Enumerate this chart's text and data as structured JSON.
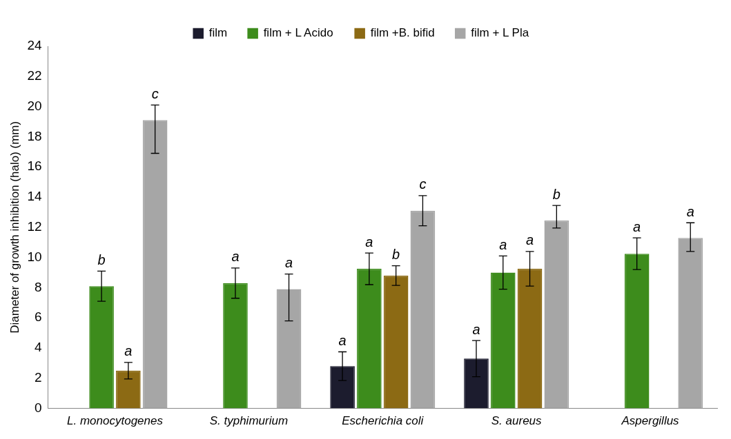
{
  "chart_data": {
    "type": "bar",
    "ylabel": "Diameter of growth inhibition (halo) (mm)",
    "categories": [
      "L. monocytogenes",
      "S. typhimurium",
      "Escherichia coli",
      "S. aureus",
      "Aspergillus"
    ],
    "ylim": [
      0,
      24
    ],
    "yticks": [
      0,
      2,
      4,
      6,
      8,
      10,
      12,
      14,
      16,
      18,
      20,
      22,
      24
    ],
    "grid": false,
    "legend": "top",
    "series": [
      {
        "name": "film",
        "color": "#1c1c2e",
        "values": [
          0,
          0,
          2.8,
          3.3,
          0
        ],
        "errors": [
          null,
          null,
          0.95,
          1.2,
          null
        ],
        "value_labels": [
          null,
          null,
          "a",
          "a",
          null
        ]
      },
      {
        "name": "film + L Acido",
        "color": "#3d8c1c",
        "values": [
          8.1,
          8.3,
          9.25,
          9.0,
          10.25
        ],
        "errors": [
          1.0,
          1.0,
          1.05,
          1.1,
          1.05
        ],
        "value_labels": [
          "b",
          "a",
          "a",
          "a",
          "a"
        ]
      },
      {
        "name": "film +B. bifid",
        "color": "#8c6a14",
        "values": [
          2.5,
          0,
          8.8,
          9.25,
          0
        ],
        "errors": [
          0.55,
          null,
          0.65,
          1.15,
          null
        ],
        "value_labels": [
          "a",
          null,
          "b",
          "a",
          null
        ]
      },
      {
        "name": "film + L Pla",
        "color": "#a6a6a6",
        "values": [
          19.1,
          7.9,
          13.1,
          12.45,
          11.3
        ],
        "errors": [
          [
            16.9,
            20.1
          ],
          [
            5.8,
            8.9
          ],
          1.0,
          [
            11.95,
            13.45
          ],
          [
            10.4,
            12.3
          ]
        ],
        "value_labels": [
          "c",
          "a",
          "c",
          "b",
          "a"
        ]
      }
    ]
  }
}
